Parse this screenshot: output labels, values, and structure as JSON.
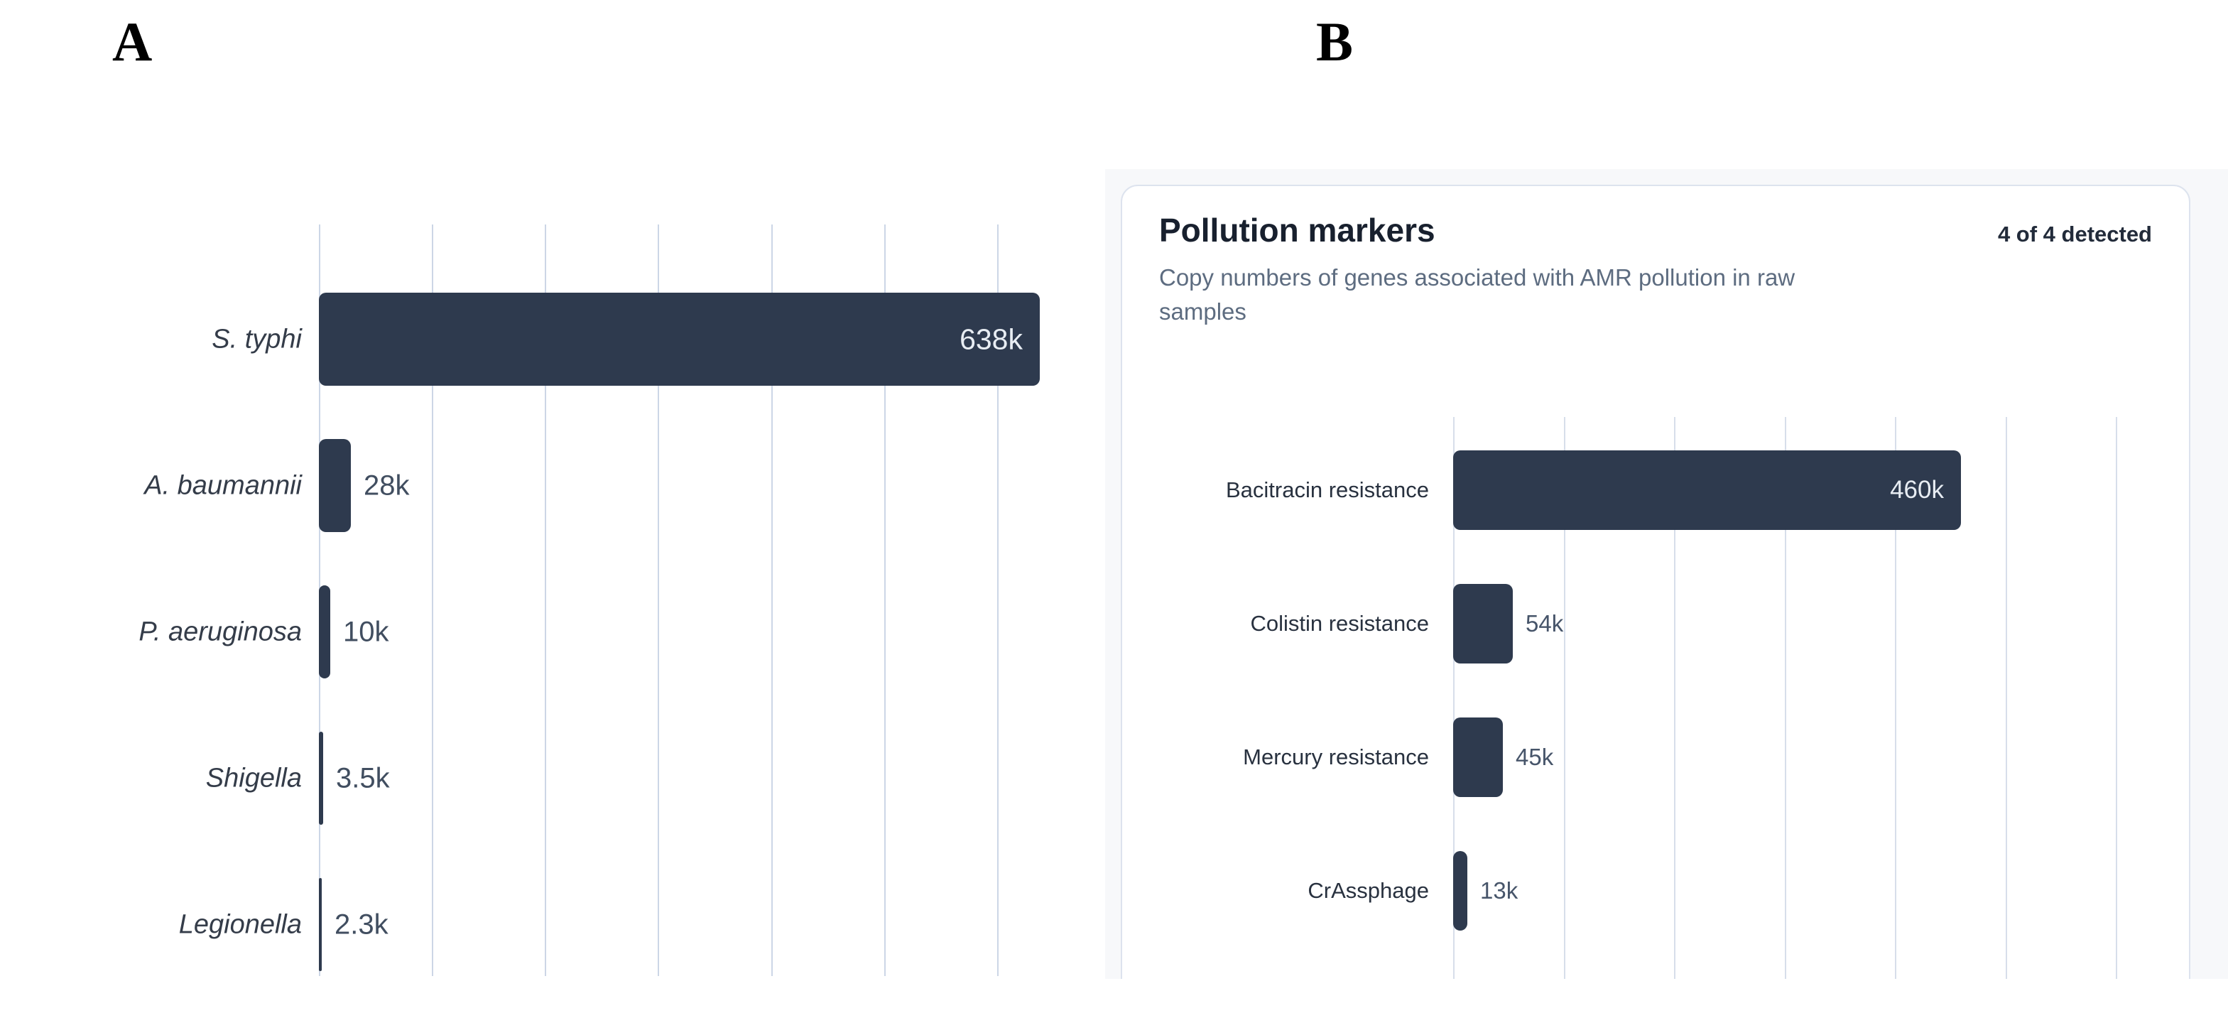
{
  "panel_a": {
    "label": "A",
    "chart_data": {
      "type": "bar",
      "orientation": "horizontal",
      "categories": [
        "S. typhi",
        "A. baumannii",
        "P. aeruginosa",
        "Shigella",
        "Legionella"
      ],
      "values": [
        638000,
        28000,
        10000,
        3500,
        2300
      ],
      "value_labels": [
        "638k",
        "28k",
        "10k",
        "3.5k",
        "2.3k"
      ],
      "xlim": [
        0,
        710000
      ],
      "gridline_interval": 100000,
      "grid": "vertical-only",
      "legend": "none",
      "bar_color": "#2e3a4e",
      "category_label_style": "italic"
    }
  },
  "panel_b": {
    "label": "B",
    "card": {
      "title": "Pollution markers",
      "status": "4 of 4 detected",
      "subtitle": "Copy numbers of genes associated with AMR pollution in raw samples"
    },
    "chart_data": {
      "type": "bar",
      "orientation": "horizontal",
      "categories": [
        "Bacitracin resistance",
        "Colistin resistance",
        "Mercury resistance",
        "CrAssphage"
      ],
      "values": [
        460000,
        54000,
        45000,
        13000
      ],
      "value_labels": [
        "460k",
        "54k",
        "45k",
        "13k"
      ],
      "xlim": [
        0,
        643000
      ],
      "gridline_interval": 100000,
      "grid": "vertical-only",
      "legend": "none",
      "bar_color": "#2e3a4e"
    }
  },
  "colors": {
    "bar": "#2e3a4e",
    "gridline_a": "#ccd6e6",
    "gridline_b": "#d7deea",
    "value_inside_text": "#e8edf3",
    "value_outside_text": "#47556a",
    "card_background": "#ffffff",
    "card_border": "#dde3ee",
    "panel_b_backdrop": "#f7f8fa",
    "subtitle_text": "#5d6c80"
  }
}
